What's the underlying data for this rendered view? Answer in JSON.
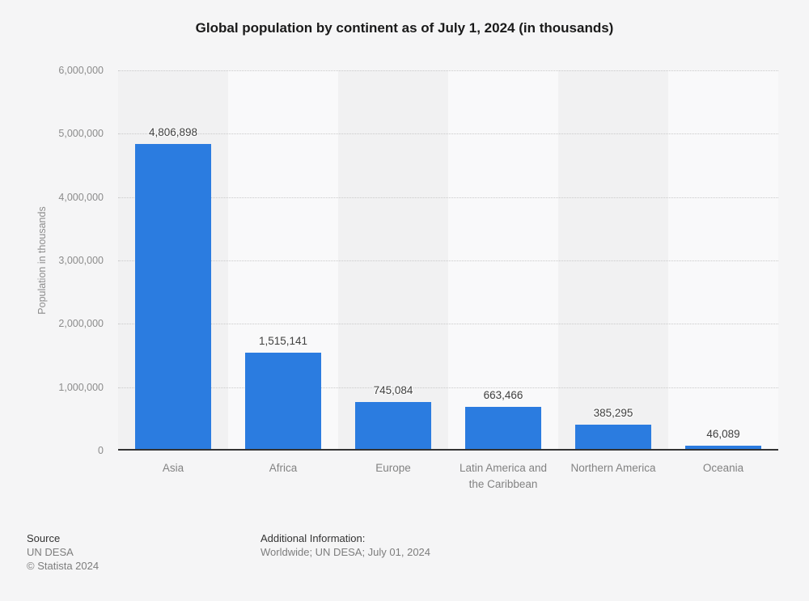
{
  "title": "Global population by continent as of July 1, 2024 (in thousands)",
  "chart_data": {
    "type": "bar",
    "title": "Global population by continent as of July 1, 2024 (in thousands)",
    "categories": [
      "Asia",
      "Africa",
      "Europe",
      "Latin America and the Caribbean",
      "Northern America",
      "Oceania"
    ],
    "values": [
      4806898,
      1515141,
      745084,
      663466,
      385295,
      46089
    ],
    "value_labels": [
      "4,806,898",
      "1,515,141",
      "745,084",
      "663,466",
      "385,295",
      "46,089"
    ],
    "xlabel": "",
    "ylabel": "Population in thousands",
    "ylim": [
      0,
      6000000
    ],
    "yticks": [
      0,
      1000000,
      2000000,
      3000000,
      4000000,
      5000000,
      6000000
    ],
    "ytick_labels": [
      "0",
      "1,000,000",
      "2,000,000",
      "3,000,000",
      "4,000,000",
      "5,000,000",
      "6,000,000"
    ],
    "grid": "horizontal-dotted",
    "legend": "none",
    "bar_color": "#2b7ce0"
  },
  "colors": {
    "bar": "#2b7ce0",
    "band_odd": "#f1f1f2",
    "band_even": "#f9f9fa",
    "background": "#f5f5f6",
    "axis_line": "#333333",
    "gridline": "#c9c9c9",
    "tick_text": "#8c8c8c",
    "value_text": "#404040"
  },
  "footer": {
    "source_label": "Source",
    "source_value": "UN DESA",
    "copyright": "© Statista 2024",
    "additional_label": "Additional Information:",
    "additional_value": "Worldwide; UN DESA; July 01, 2024"
  }
}
